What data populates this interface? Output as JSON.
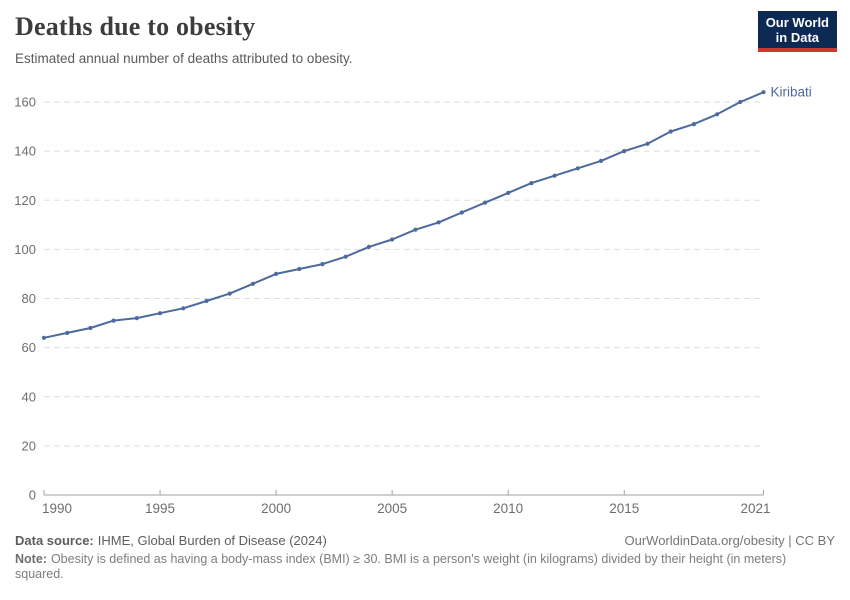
{
  "header": {
    "title": "Deaths due to obesity",
    "subtitle": "Estimated annual number of deaths attributed to obesity.",
    "logo": {
      "line1": "Our World",
      "line2": "in Data",
      "bg_color": "#0D2A54",
      "accent_color": "#C9392F"
    }
  },
  "chart_data": {
    "type": "line",
    "title": "Deaths due to obesity",
    "subtitle": "Estimated annual number of deaths attributed to obesity.",
    "x": [
      1990,
      1991,
      1992,
      1993,
      1994,
      1995,
      1996,
      1997,
      1998,
      1999,
      2000,
      2001,
      2002,
      2003,
      2004,
      2005,
      2006,
      2007,
      2008,
      2009,
      2010,
      2011,
      2012,
      2013,
      2014,
      2015,
      2016,
      2017,
      2018,
      2019,
      2020,
      2021
    ],
    "series": [
      {
        "name": "Kiribati",
        "color": "#4C6A9C",
        "values": [
          64,
          66,
          68,
          71,
          72,
          74,
          76,
          79,
          82,
          86,
          90,
          92,
          94,
          97,
          101,
          104,
          108,
          111,
          115,
          119,
          123,
          127,
          130,
          133,
          136,
          140,
          143,
          148,
          151,
          155,
          160,
          164
        ]
      }
    ],
    "xlabel": "",
    "ylabel": "",
    "ylim": [
      0,
      160
    ],
    "yticks": [
      0,
      20,
      40,
      60,
      80,
      100,
      120,
      140,
      160
    ],
    "xticks": [
      1990,
      1995,
      2000,
      2005,
      2010,
      2015,
      2021
    ],
    "grid": "horizontal-dashed",
    "legend": "label-at-line-end"
  },
  "footer": {
    "source_label": "Data source:",
    "source_value": "IHME, Global Burden of Disease (2024)",
    "link": "OurWorldinData.org/obesity | CC BY",
    "note_label": "Note:",
    "note_value": "Obesity is defined as having a body-mass index (BMI) ≥ 30. BMI is a person's weight (in kilograms) divided by their height (in meters) squared."
  },
  "colors": {
    "line": "#4C6A9C",
    "grid": "#dedede",
    "axis": "#a1a1a1",
    "tick_label": "#6e6e6e"
  }
}
